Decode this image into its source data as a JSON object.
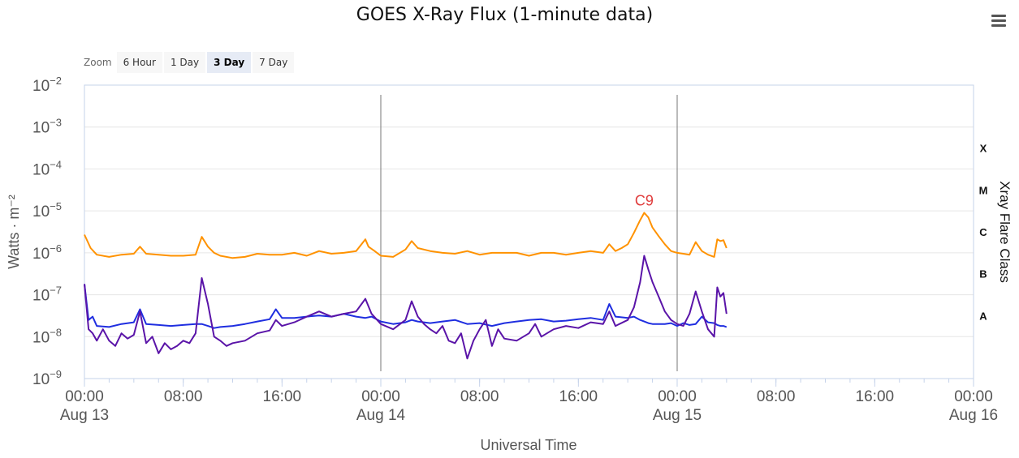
{
  "chart_title": "GOES X-Ray Flux (1-minute data)",
  "menu_icon": "hamburger-menu-icon",
  "zoom": {
    "label": "Zoom",
    "buttons": [
      "6 Hour",
      "1 Day",
      "3 Day",
      "7 Day"
    ],
    "selected": "3 Day"
  },
  "chart_data": {
    "type": "line",
    "title": "GOES X-Ray Flux (1-minute data)",
    "xlabel": "Universal Time",
    "ylabel": "Watts · m⁻²",
    "ylabel_right": "Xray Flare Class",
    "y_scale": "log",
    "ylim": [
      1e-09,
      0.01
    ],
    "y_ticks": [
      {
        "value": 1e-09,
        "base": "10",
        "exp": "−9"
      },
      {
        "value": 1e-08,
        "base": "10",
        "exp": "−8"
      },
      {
        "value": 1e-07,
        "base": "10",
        "exp": "−7"
      },
      {
        "value": 1e-06,
        "base": "10",
        "exp": "−6"
      },
      {
        "value": 1e-05,
        "base": "10",
        "exp": "−5"
      },
      {
        "value": 0.0001,
        "base": "10",
        "exp": "−4"
      },
      {
        "value": 0.001,
        "base": "10",
        "exp": "−3"
      },
      {
        "value": 0.01,
        "base": "10",
        "exp": "−2"
      }
    ],
    "xlim": [
      "Aug 13 00:00",
      "Aug 16 00:00"
    ],
    "x_ticks": [
      {
        "time": "00:00",
        "date": "Aug 13"
      },
      {
        "time": "08:00",
        "date": ""
      },
      {
        "time": "16:00",
        "date": ""
      },
      {
        "time": "00:00",
        "date": "Aug 14"
      },
      {
        "time": "08:00",
        "date": ""
      },
      {
        "time": "16:00",
        "date": ""
      },
      {
        "time": "00:00",
        "date": "Aug 15"
      },
      {
        "time": "08:00",
        "date": ""
      },
      {
        "time": "16:00",
        "date": ""
      },
      {
        "time": "00:00",
        "date": "Aug 16"
      }
    ],
    "day_boundaries": [
      "Aug 14 00:00",
      "Aug 15 00:00"
    ],
    "flare_classes": [
      {
        "label": "A",
        "min": 1e-08
      },
      {
        "label": "B",
        "min": 1e-07
      },
      {
        "label": "C",
        "min": 1e-06
      },
      {
        "label": "M",
        "min": 1e-05
      },
      {
        "label": "X",
        "min": 0.0001
      }
    ],
    "annotations": [
      {
        "text": "C9",
        "x": "Aug 14 21:20",
        "y": 9e-06,
        "color": "#e03c3c"
      }
    ],
    "grid": true,
    "series": [
      {
        "color": "#ff9200",
        "x": [
          "Aug 13 00:00",
          "Aug 13 00:30",
          "Aug 13 01:00",
          "Aug 13 02:00",
          "Aug 13 03:00",
          "Aug 13 04:00",
          "Aug 13 04:30",
          "Aug 13 05:00",
          "Aug 13 06:00",
          "Aug 13 07:00",
          "Aug 13 08:00",
          "Aug 13 09:00",
          "Aug 13 09:30",
          "Aug 13 10:00",
          "Aug 13 10:30",
          "Aug 13 11:00",
          "Aug 13 12:00",
          "Aug 13 13:00",
          "Aug 13 14:00",
          "Aug 13 15:00",
          "Aug 13 16:00",
          "Aug 13 17:00",
          "Aug 13 18:00",
          "Aug 13 19:00",
          "Aug 13 20:00",
          "Aug 13 21:00",
          "Aug 13 22:00",
          "Aug 13 22:45",
          "Aug 13 23:00",
          "Aug 13 23:30",
          "Aug 14 00:00",
          "Aug 14 01:00",
          "Aug 14 02:00",
          "Aug 14 02:30",
          "Aug 14 03:00",
          "Aug 14 04:00",
          "Aug 14 05:00",
          "Aug 14 06:00",
          "Aug 14 07:00",
          "Aug 14 08:00",
          "Aug 14 09:00",
          "Aug 14 10:00",
          "Aug 14 11:00",
          "Aug 14 12:00",
          "Aug 14 13:00",
          "Aug 14 14:00",
          "Aug 14 15:00",
          "Aug 14 16:00",
          "Aug 14 17:00",
          "Aug 14 18:00",
          "Aug 14 18:30",
          "Aug 14 19:00",
          "Aug 14 19:30",
          "Aug 14 20:00",
          "Aug 14 20:30",
          "Aug 14 21:00",
          "Aug 14 21:20",
          "Aug 14 21:40",
          "Aug 14 22:00",
          "Aug 14 22:30",
          "Aug 14 23:00",
          "Aug 14 23:30",
          "Aug 15 00:00",
          "Aug 15 00:30",
          "Aug 15 01:00",
          "Aug 15 01:30",
          "Aug 15 02:00",
          "Aug 15 02:30",
          "Aug 15 03:00",
          "Aug 15 03:15",
          "Aug 15 03:30",
          "Aug 15 03:45",
          "Aug 15 04:00"
        ],
        "values": [
          2.7e-06,
          1.3e-06,
          9e-07,
          8e-07,
          9e-07,
          9.5e-07,
          1.4e-06,
          9.5e-07,
          9e-07,
          8.5e-07,
          8.5e-07,
          9e-07,
          2.4e-06,
          1.4e-06,
          1e-06,
          8.5e-07,
          7.5e-07,
          8e-07,
          9.5e-07,
          9e-07,
          9e-07,
          1e-06,
          8.5e-07,
          1.1e-06,
          9.5e-07,
          1e-06,
          1.1e-06,
          2.1e-06,
          1.4e-06,
          1.1e-06,
          8.5e-07,
          8e-07,
          1.2e-06,
          1.9e-06,
          1.3e-06,
          1.1e-06,
          1e-06,
          9.5e-07,
          1.1e-06,
          9e-07,
          1e-06,
          1e-06,
          1e-06,
          8.5e-07,
          1e-06,
          1e-06,
          9e-07,
          1e-06,
          1.1e-06,
          1e-06,
          1.6e-06,
          1.1e-06,
          1.3e-06,
          1.6e-06,
          3e-06,
          6e-06,
          9e-06,
          7e-06,
          4e-06,
          2.5e-06,
          1.6e-06,
          1.1e-06,
          1e-06,
          9.5e-07,
          9e-07,
          1.8e-06,
          1.1e-06,
          9e-07,
          8e-07,
          2.1e-06,
          1.9e-06,
          2e-06,
          1.3e-06
        ]
      },
      {
        "color": "#1f2ee0",
        "x": [
          "Aug 13 00:00",
          "Aug 13 00:20",
          "Aug 13 00:40",
          "Aug 13 01:00",
          "Aug 13 02:00",
          "Aug 13 03:00",
          "Aug 13 04:00",
          "Aug 13 04:30",
          "Aug 13 05:00",
          "Aug 13 06:00",
          "Aug 13 07:00",
          "Aug 13 08:00",
          "Aug 13 09:00",
          "Aug 13 09:30",
          "Aug 13 10:00",
          "Aug 13 10:30",
          "Aug 13 11:00",
          "Aug 13 12:00",
          "Aug 13 13:00",
          "Aug 13 14:00",
          "Aug 13 15:00",
          "Aug 13 15:30",
          "Aug 13 16:00",
          "Aug 13 17:00",
          "Aug 13 18:00",
          "Aug 13 19:00",
          "Aug 13 20:00",
          "Aug 13 21:00",
          "Aug 13 22:00",
          "Aug 13 22:45",
          "Aug 13 23:15",
          "Aug 14 00:00",
          "Aug 14 01:00",
          "Aug 14 02:00",
          "Aug 14 02:30",
          "Aug 14 03:00",
          "Aug 14 04:00",
          "Aug 14 05:00",
          "Aug 14 06:00",
          "Aug 14 07:00",
          "Aug 14 08:00",
          "Aug 14 09:00",
          "Aug 14 10:00",
          "Aug 14 11:00",
          "Aug 14 12:00",
          "Aug 14 13:00",
          "Aug 14 14:00",
          "Aug 14 15:00",
          "Aug 14 16:00",
          "Aug 14 17:00",
          "Aug 14 18:00",
          "Aug 14 18:30",
          "Aug 14 19:00",
          "Aug 14 20:00",
          "Aug 14 20:30",
          "Aug 14 21:00",
          "Aug 14 21:20",
          "Aug 14 21:40",
          "Aug 14 22:00",
          "Aug 14 22:30",
          "Aug 14 23:00",
          "Aug 14 23:30",
          "Aug 15 00:00",
          "Aug 15 00:30",
          "Aug 15 01:00",
          "Aug 15 01:30",
          "Aug 15 02:00",
          "Aug 15 02:30",
          "Aug 15 03:00",
          "Aug 15 03:15",
          "Aug 15 03:30",
          "Aug 15 03:45",
          "Aug 15 04:00"
        ],
        "values": [
          1.8e-07,
          2.5e-08,
          3e-08,
          1.8e-08,
          1.7e-08,
          2e-08,
          2.2e-08,
          4.5e-08,
          2e-08,
          1.9e-08,
          1.8e-08,
          1.9e-08,
          2e-08,
          2e-08,
          1.8e-08,
          1.6e-08,
          1.7e-08,
          1.8e-08,
          2e-08,
          2.3e-08,
          2.6e-08,
          4.5e-08,
          2.8e-08,
          2.8e-08,
          3e-08,
          3.2e-08,
          3e-08,
          3.5e-08,
          3e-08,
          2.8e-08,
          3e-08,
          2.3e-08,
          2e-08,
          2.2e-08,
          2.5e-08,
          2.3e-08,
          2.1e-08,
          2.3e-08,
          2.5e-08,
          2e-08,
          2.1e-08,
          1.8e-08,
          2.1e-08,
          2.3e-08,
          2.5e-08,
          2.6e-08,
          2.3e-08,
          2.4e-08,
          2.6e-08,
          2.8e-08,
          2.5e-08,
          6e-08,
          3e-08,
          2.8e-08,
          3e-08,
          2.5e-08,
          2.3e-08,
          2.1e-08,
          2e-08,
          2e-08,
          2e-08,
          2.1e-08,
          1.8e-08,
          2.1e-08,
          1.9e-08,
          2e-08,
          3e-08,
          2.2e-08,
          2.1e-08,
          1.9e-08,
          1.8e-08,
          1.8e-08,
          1.7e-08
        ]
      },
      {
        "color": "#5a14a8",
        "x": [
          "Aug 13 00:00",
          "Aug 13 00:20",
          "Aug 13 00:40",
          "Aug 13 01:00",
          "Aug 13 01:30",
          "Aug 13 02:00",
          "Aug 13 02:30",
          "Aug 13 03:00",
          "Aug 13 03:30",
          "Aug 13 04:00",
          "Aug 13 04:30",
          "Aug 13 05:00",
          "Aug 13 05:30",
          "Aug 13 06:00",
          "Aug 13 06:30",
          "Aug 13 07:00",
          "Aug 13 07:30",
          "Aug 13 08:00",
          "Aug 13 08:30",
          "Aug 13 09:00",
          "Aug 13 09:30",
          "Aug 13 10:00",
          "Aug 13 10:30",
          "Aug 13 11:00",
          "Aug 13 11:30",
          "Aug 13 12:00",
          "Aug 13 13:00",
          "Aug 13 14:00",
          "Aug 13 15:00",
          "Aug 13 15:30",
          "Aug 13 16:00",
          "Aug 13 17:00",
          "Aug 13 18:00",
          "Aug 13 19:00",
          "Aug 13 20:00",
          "Aug 13 21:00",
          "Aug 13 22:00",
          "Aug 13 22:45",
          "Aug 13 23:15",
          "Aug 14 00:00",
          "Aug 14 01:00",
          "Aug 14 02:00",
          "Aug 14 02:30",
          "Aug 14 03:00",
          "Aug 14 03:30",
          "Aug 14 04:00",
          "Aug 14 04:30",
          "Aug 14 05:00",
          "Aug 14 05:30",
          "Aug 14 06:00",
          "Aug 14 06:30",
          "Aug 14 07:00",
          "Aug 14 07:30",
          "Aug 14 08:00",
          "Aug 14 08:30",
          "Aug 14 09:00",
          "Aug 14 09:30",
          "Aug 14 10:00",
          "Aug 14 11:00",
          "Aug 14 12:00",
          "Aug 14 12:30",
          "Aug 14 13:00",
          "Aug 14 14:00",
          "Aug 14 15:00",
          "Aug 14 16:00",
          "Aug 14 17:00",
          "Aug 14 18:00",
          "Aug 14 18:30",
          "Aug 14 19:00",
          "Aug 14 20:00",
          "Aug 14 20:30",
          "Aug 14 21:00",
          "Aug 14 21:20",
          "Aug 14 21:40",
          "Aug 14 22:00",
          "Aug 14 22:30",
          "Aug 14 23:00",
          "Aug 14 23:30",
          "Aug 15 00:00",
          "Aug 15 00:30",
          "Aug 15 01:00",
          "Aug 15 01:30",
          "Aug 15 02:00",
          "Aug 15 02:30",
          "Aug 15 03:00",
          "Aug 15 03:15",
          "Aug 15 03:30",
          "Aug 15 03:45",
          "Aug 15 04:00"
        ],
        "values": [
          1.8e-07,
          1.5e-08,
          1.2e-08,
          8e-09,
          1.5e-08,
          8e-09,
          6e-09,
          1.2e-08,
          9e-09,
          1.1e-08,
          4e-08,
          7e-09,
          1e-08,
          4e-09,
          7e-09,
          5e-09,
          6e-09,
          8e-09,
          7e-09,
          1.2e-08,
          2.5e-07,
          6e-08,
          1e-08,
          8e-09,
          6e-09,
          7e-09,
          8e-09,
          1.2e-08,
          1.4e-08,
          2.5e-08,
          1.8e-08,
          2.2e-08,
          3e-08,
          4e-08,
          3e-08,
          3.5e-08,
          4e-08,
          8e-08,
          3.5e-08,
          2e-08,
          1.5e-08,
          2.5e-08,
          7e-08,
          3e-08,
          2e-08,
          1.5e-08,
          1.2e-08,
          1.8e-08,
          8e-09,
          7e-09,
          1.2e-08,
          3e-09,
          8e-09,
          1.5e-08,
          2.5e-08,
          6e-09,
          1.5e-08,
          9e-09,
          8e-09,
          1.2e-08,
          2e-08,
          1e-08,
          1.5e-08,
          1.8e-08,
          1.6e-08,
          2.2e-08,
          2e-08,
          4e-08,
          1.8e-08,
          2.5e-08,
          5e-08,
          2e-07,
          8.5e-07,
          4e-07,
          2e-07,
          9e-08,
          4e-08,
          2.5e-08,
          2e-08,
          1.8e-08,
          3.5e-08,
          1.2e-07,
          4e-08,
          1.5e-08,
          1e-08,
          1.5e-07,
          9e-08,
          1.1e-07,
          3.5e-08
        ]
      }
    ]
  }
}
